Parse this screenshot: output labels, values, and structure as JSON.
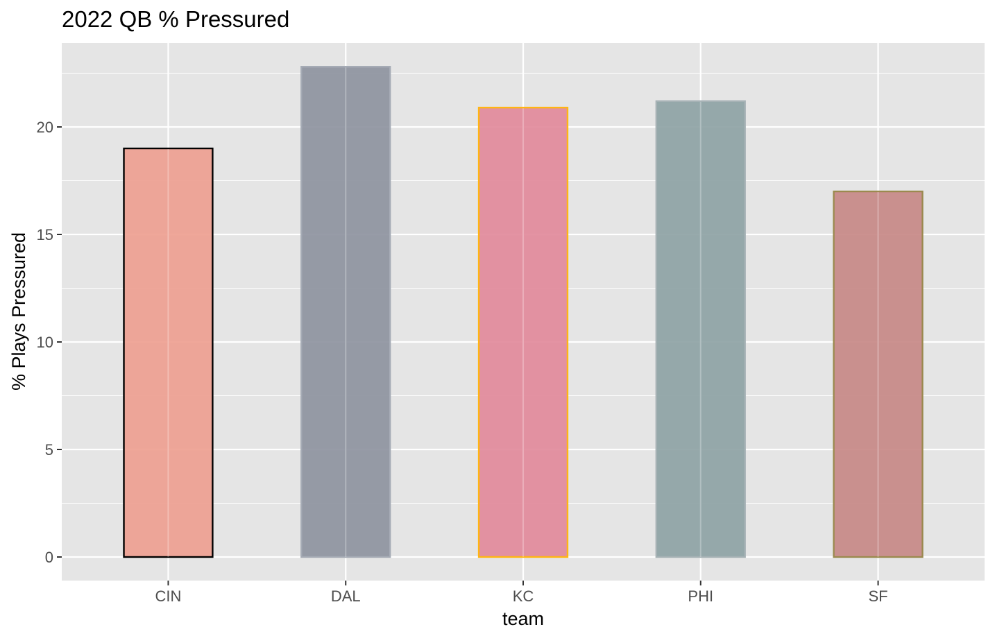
{
  "chart_data": {
    "type": "bar",
    "title": "2022 QB % Pressured",
    "xlabel": "team",
    "ylabel": "% Plays Pressured",
    "categories": [
      "CIN",
      "DAL",
      "KC",
      "PHI",
      "SF"
    ],
    "values": [
      19.0,
      22.8,
      20.9,
      21.2,
      17.0
    ],
    "ylim": [
      0,
      23.9
    ],
    "yticks": [
      0,
      5,
      10,
      15,
      20
    ],
    "ytick_labels": [
      "0",
      "5",
      "10",
      "15",
      "20"
    ],
    "grid": true,
    "legend": "none",
    "bar_fill_colors": [
      "#ee9f91",
      "#8e94a0",
      "#e28a9b",
      "#8ea3a5",
      "#c78987"
    ],
    "bar_outline_colors": [
      "#000000",
      "#a5abb5",
      "#ffb612",
      "#a6b2b5",
      "#9b8a4f"
    ],
    "panel_background": "#e5e5e5",
    "gridline_color": "#ffffff"
  }
}
